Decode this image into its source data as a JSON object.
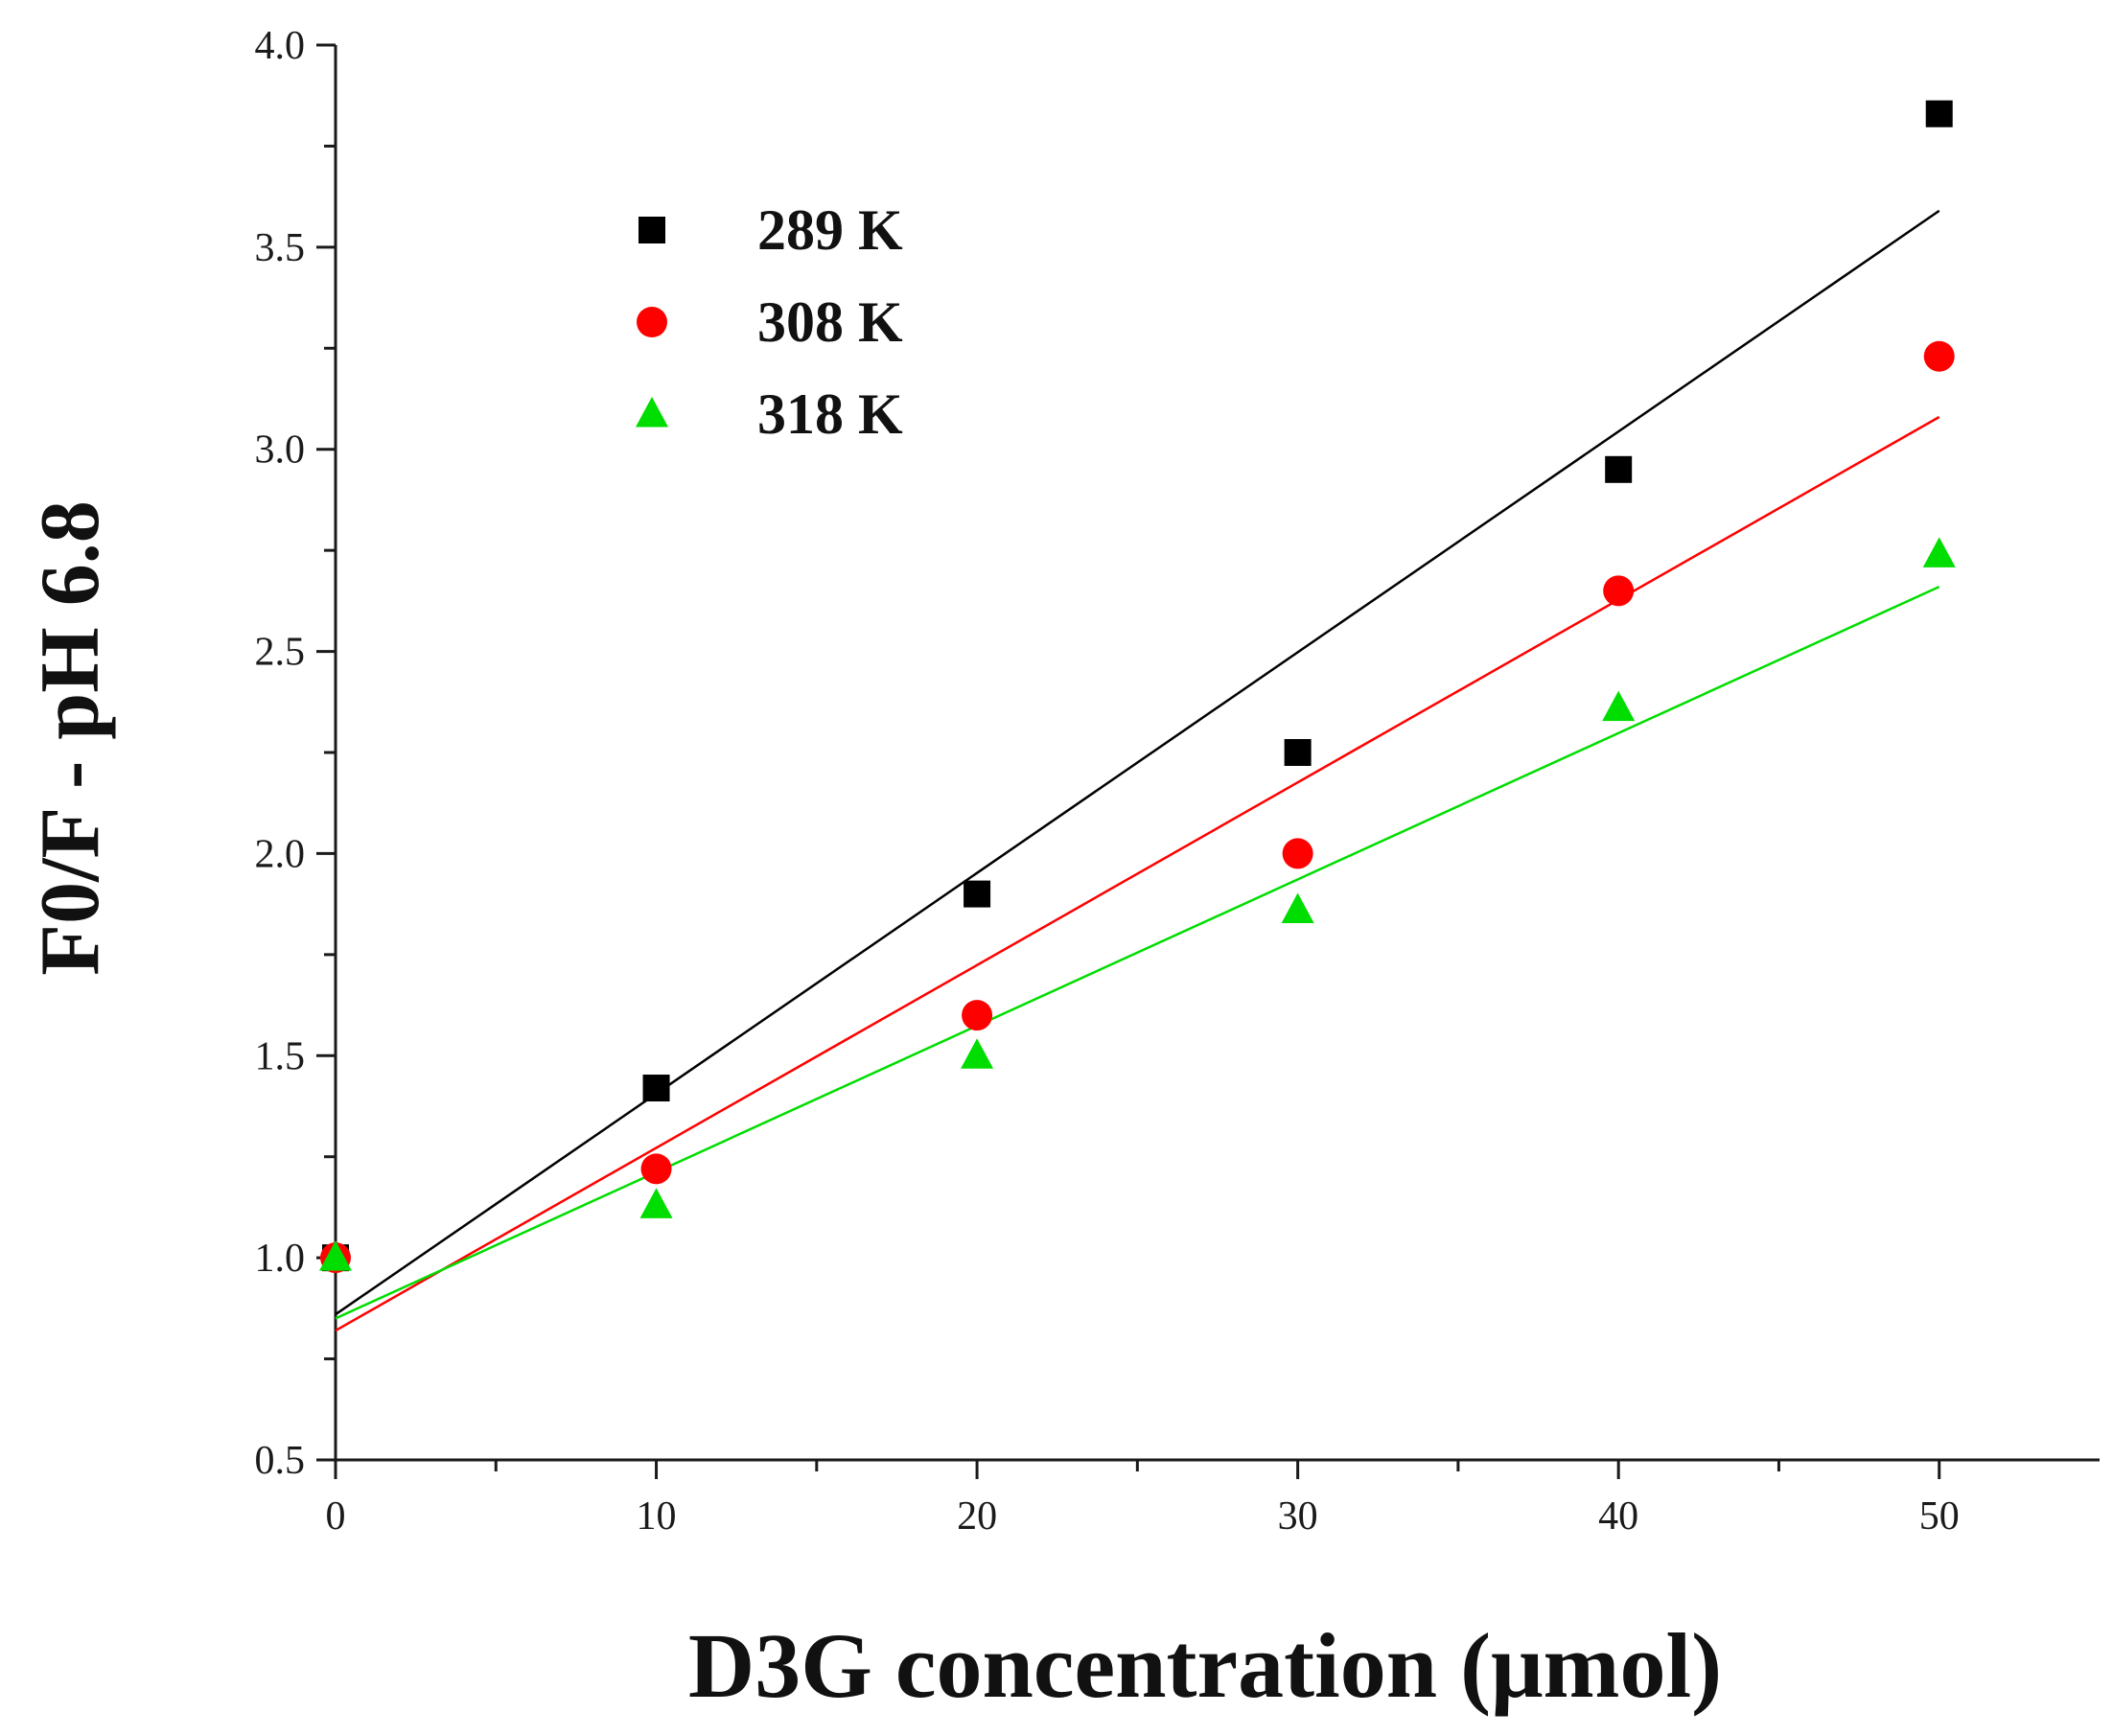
{
  "chart_data": {
    "type": "scatter",
    "title": "",
    "xlabel": "D3G concentration (μmol)",
    "ylabel": "F0/F - pH 6.8",
    "xlim": [
      0,
      55
    ],
    "ylim": [
      0.5,
      4.0
    ],
    "xticks": [
      0,
      10,
      20,
      30,
      40,
      50
    ],
    "yticks": [
      0.5,
      1.0,
      1.5,
      2.0,
      2.5,
      3.0,
      3.5,
      4.0
    ],
    "xtick_labels": [
      "0",
      "10",
      "20",
      "30",
      "40",
      "50"
    ],
    "ytick_labels": [
      "0.5",
      "1.0",
      "1.5",
      "2.0",
      "2.5",
      "3.0",
      "3.5",
      "4.0"
    ],
    "grid": false,
    "legend_position": "top-left",
    "series": [
      {
        "name": "289 K",
        "marker": "square",
        "color": "#000000",
        "x": [
          0,
          10,
          20,
          30,
          40,
          50
        ],
        "y": [
          1.0,
          1.42,
          1.9,
          2.25,
          2.95,
          3.83
        ],
        "fit": {
          "x": [
            0,
            50
          ],
          "y": [
            0.86,
            3.59
          ]
        }
      },
      {
        "name": "308 K",
        "marker": "circle",
        "color": "#ff0000",
        "x": [
          0,
          10,
          20,
          30,
          40,
          50
        ],
        "y": [
          1.0,
          1.22,
          1.6,
          2.0,
          2.65,
          3.23
        ],
        "fit": {
          "x": [
            0,
            50
          ],
          "y": [
            0.82,
            3.08
          ]
        }
      },
      {
        "name": "318 K",
        "marker": "triangle",
        "color": "#00dd00",
        "x": [
          0,
          10,
          20,
          30,
          40,
          50
        ],
        "y": [
          1.0,
          1.13,
          1.5,
          1.86,
          2.36,
          2.74
        ],
        "fit": {
          "x": [
            0,
            50
          ],
          "y": [
            0.85,
            2.66
          ]
        }
      }
    ]
  }
}
